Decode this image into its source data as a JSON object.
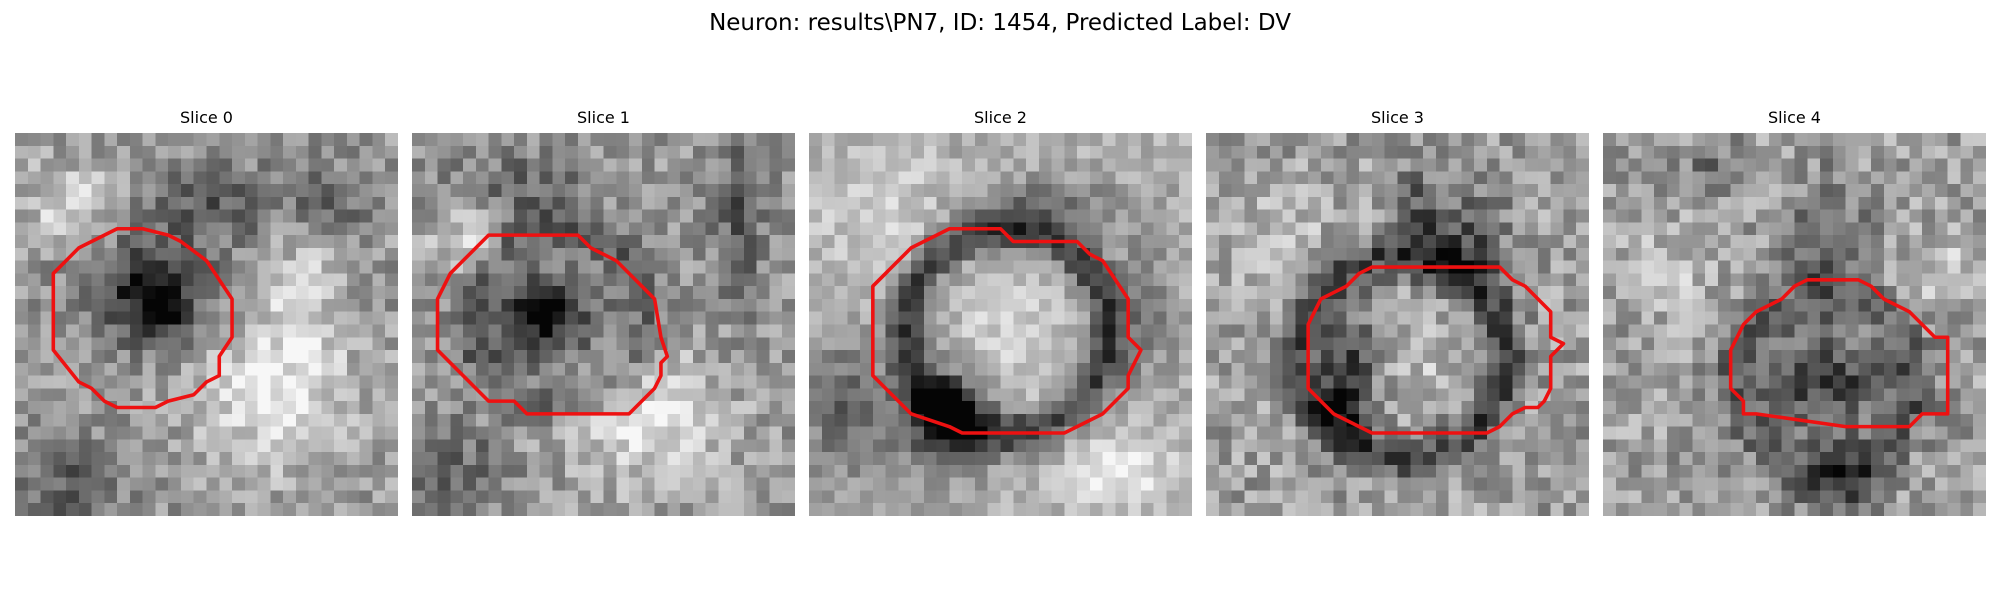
{
  "figure": {
    "title": "Neuron: results\\PN7, ID: 1454, Predicted Label: DV",
    "contour_color": "#ee1111"
  },
  "panels": [
    {
      "title": "Slice 0"
    },
    {
      "title": "Slice 1"
    },
    {
      "title": "Slice 2"
    },
    {
      "title": "Slice 3"
    },
    {
      "title": "Slice 4"
    }
  ]
}
